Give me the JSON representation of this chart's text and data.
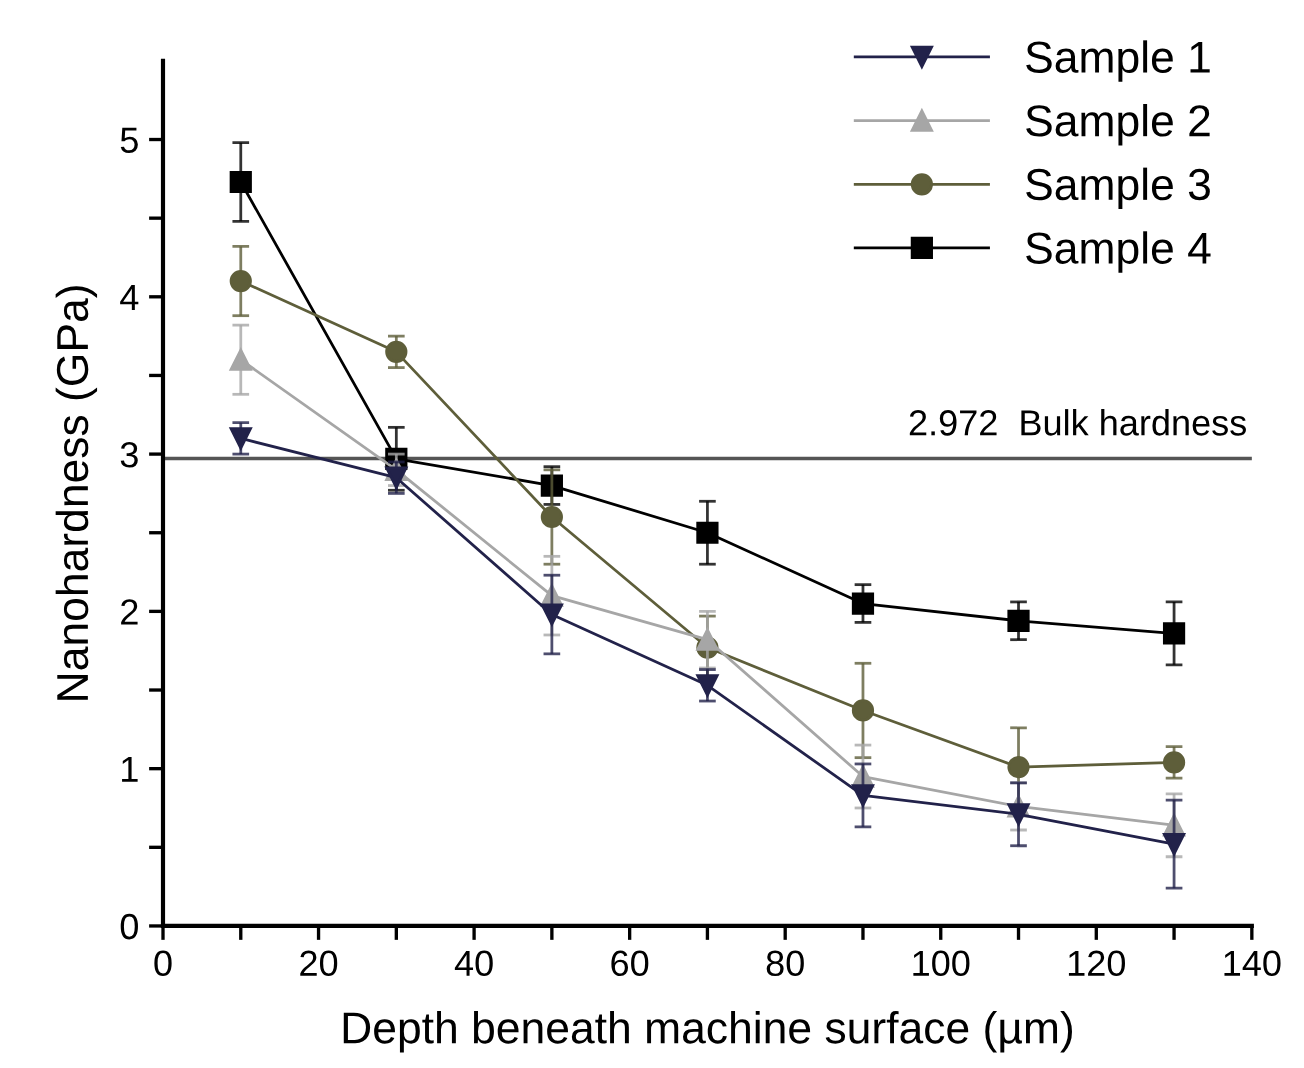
{
  "chart_data": {
    "type": "line",
    "xlabel": "Depth beneath machine surface (µm)",
    "ylabel": "Nanohardness (GPa)",
    "x": [
      10,
      30,
      50,
      70,
      90,
      110,
      130
    ],
    "series": [
      {
        "name": "Sample 1",
        "color": "#22224a",
        "marker": "triangle_down",
        "values": [
          3.1,
          2.85,
          1.98,
          1.53,
          0.83,
          0.71,
          0.52
        ],
        "errors": [
          0.1,
          0.1,
          0.25,
          0.1,
          0.2,
          0.2,
          0.28
        ]
      },
      {
        "name": "Sample 2",
        "color": "#a6a6a6",
        "marker": "triangle",
        "values": [
          3.6,
          2.9,
          2.1,
          1.82,
          0.95,
          0.76,
          0.64
        ],
        "errors": [
          0.22,
          0.1,
          0.25,
          0.18,
          0.2,
          0.15,
          0.2
        ]
      },
      {
        "name": "Sample 3",
        "color": "#5e5e3a",
        "marker": "circle",
        "values": [
          4.1,
          3.65,
          2.6,
          1.77,
          1.37,
          1.01,
          1.04
        ],
        "errors": [
          0.22,
          0.1,
          0.3,
          0.2,
          0.3,
          0.25,
          0.1
        ]
      },
      {
        "name": "Sample 4",
        "color": "#000000",
        "marker": "square",
        "values": [
          4.73,
          2.97,
          2.8,
          2.5,
          2.05,
          1.94,
          1.86
        ],
        "errors": [
          0.25,
          0.2,
          0.12,
          0.2,
          0.12,
          0.12,
          0.2
        ]
      }
    ],
    "xlim": [
      0,
      140
    ],
    "ylim": [
      0,
      5.5
    ],
    "xticks": [
      0,
      {
        "value": 10,
        "label": null
      },
      20,
      {
        "value": 30,
        "label": null
      },
      40,
      {
        "value": 50,
        "label": null
      },
      60,
      {
        "value": 70,
        "label": null
      },
      80,
      {
        "value": 90,
        "label": null
      },
      100,
      {
        "value": 110,
        "label": null
      },
      120,
      {
        "value": 130,
        "label": null
      },
      140
    ],
    "yticks": [
      0,
      {
        "value": 0.5,
        "label": null
      },
      1,
      {
        "value": 1.5,
        "label": null
      },
      2,
      {
        "value": 2.5,
        "label": null
      },
      3,
      {
        "value": 3.5,
        "label": null
      },
      4,
      {
        "value": 4.5,
        "label": null
      },
      5
    ],
    "ref_lines": [
      {
        "axis": "y",
        "value": 2.972,
        "label": "2.972  Bulk hardness",
        "color": "#555555"
      }
    ],
    "grid": false,
    "legend": "top right"
  }
}
